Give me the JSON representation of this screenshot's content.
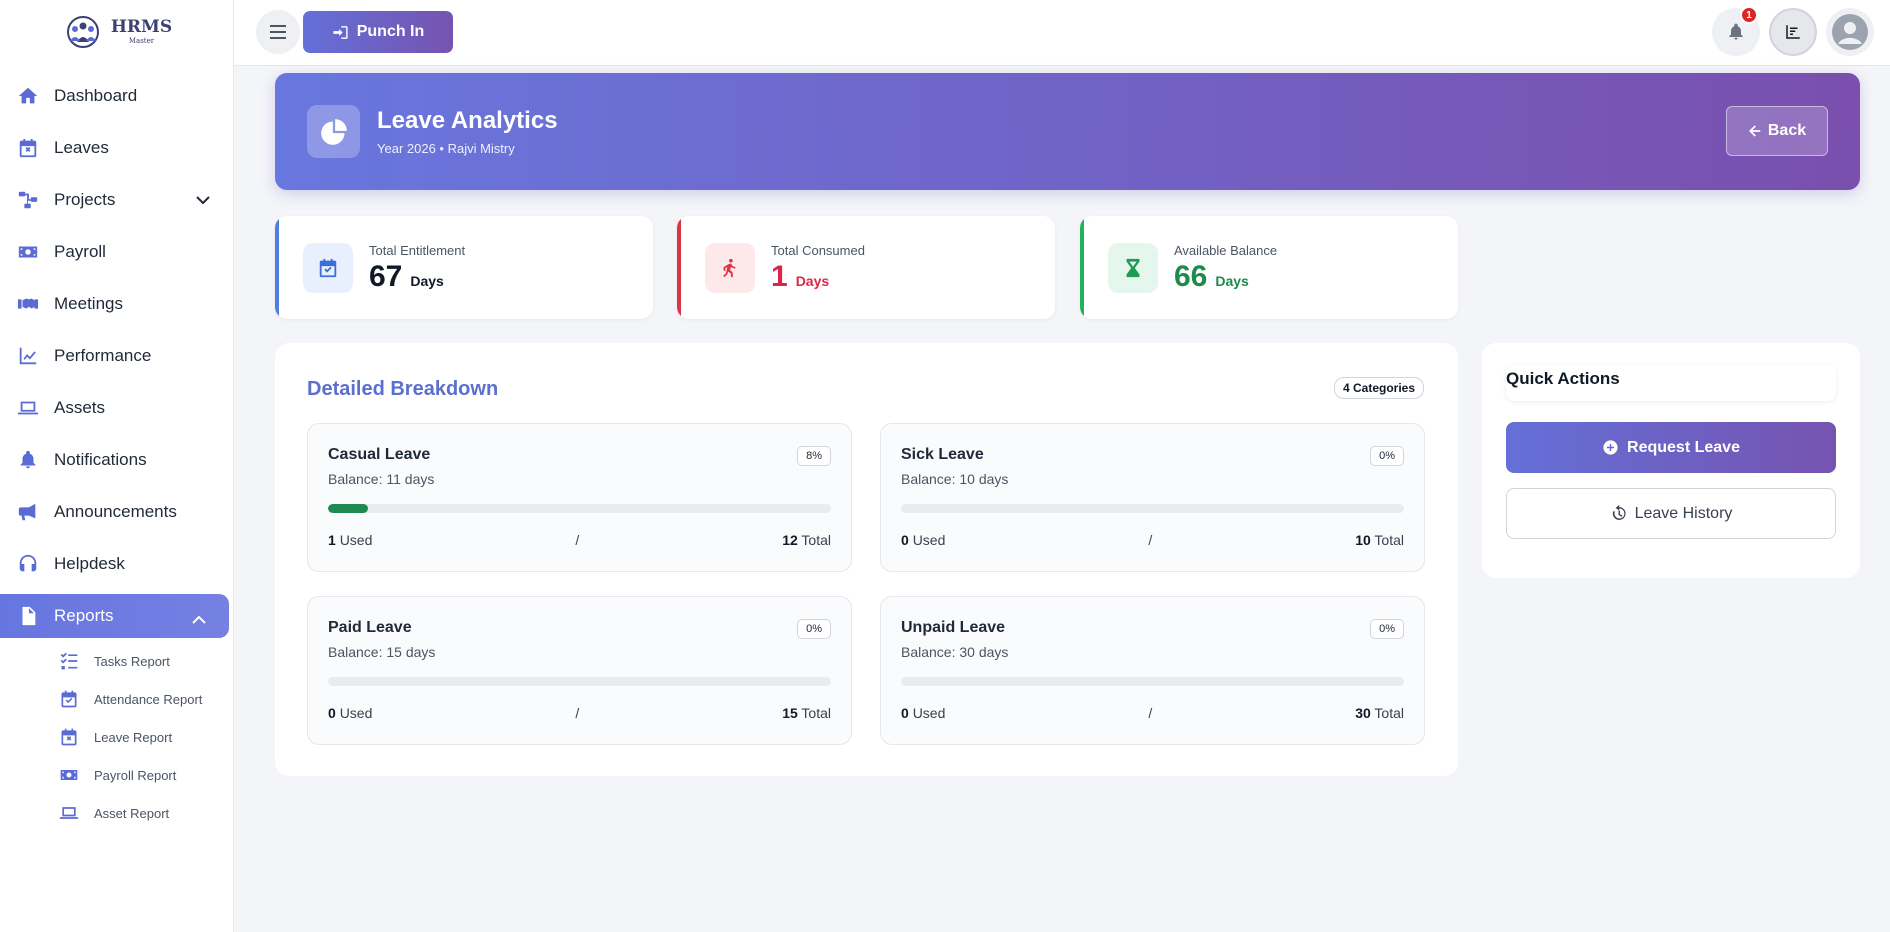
{
  "brand": {
    "name": "HRMS",
    "sub": "Master"
  },
  "sidebar": {
    "items": [
      {
        "label": "Dashboard",
        "icon": "home-icon"
      },
      {
        "label": "Leaves",
        "icon": "calendar-x-icon"
      },
      {
        "label": "Projects",
        "icon": "project-diagram-icon"
      },
      {
        "label": "Payroll",
        "icon": "money-bill-icon"
      },
      {
        "label": "Meetings",
        "icon": "handshake-icon"
      },
      {
        "label": "Performance",
        "icon": "chart-line-icon"
      },
      {
        "label": "Assets",
        "icon": "laptop-icon"
      },
      {
        "label": "Notifications",
        "icon": "bell-icon"
      },
      {
        "label": "Announcements",
        "icon": "bullhorn-icon"
      },
      {
        "label": "Helpdesk",
        "icon": "headset-icon"
      },
      {
        "label": "Reports",
        "icon": "file-icon"
      }
    ],
    "report_items": [
      {
        "label": "Tasks Report",
        "icon": "tasks-icon"
      },
      {
        "label": "Attendance Report",
        "icon": "calendar-check-icon"
      },
      {
        "label": "Leave Report",
        "icon": "calendar-x-icon"
      },
      {
        "label": "Payroll Report",
        "icon": "money-bill-icon"
      },
      {
        "label": "Asset Report",
        "icon": "laptop-icon"
      }
    ]
  },
  "topbar": {
    "punch_label": "Punch In",
    "notif_count": "1"
  },
  "hero": {
    "title": "Leave Analytics",
    "subtitle": "Year 2026 • Rajvi Mistry",
    "back_label": "Back"
  },
  "stats": [
    {
      "label": "Total Entitlement",
      "value": "67",
      "unit": "Days"
    },
    {
      "label": "Total Consumed",
      "value": "1",
      "unit": "Days"
    },
    {
      "label": "Available Balance",
      "value": "66",
      "unit": "Days"
    }
  ],
  "breakdown": {
    "title": "Detailed Breakdown",
    "badge": "4 Categories",
    "items": [
      {
        "name": "Casual Leave",
        "balance": "Balance: 11 days",
        "pct": "8%",
        "progress": 0.08,
        "used": "1",
        "used_label": "Used",
        "sep": "/",
        "total": "12",
        "total_label": "Total"
      },
      {
        "name": "Sick Leave",
        "balance": "Balance: 10 days",
        "pct": "0%",
        "progress": 0,
        "used": "0",
        "used_label": "Used",
        "sep": "/",
        "total": "10",
        "total_label": "Total"
      },
      {
        "name": "Paid Leave",
        "balance": "Balance: 15 days",
        "pct": "0%",
        "progress": 0,
        "used": "0",
        "used_label": "Used",
        "sep": "/",
        "total": "15",
        "total_label": "Total"
      },
      {
        "name": "Unpaid Leave",
        "balance": "Balance: 30 days",
        "pct": "0%",
        "progress": 0,
        "used": "0",
        "used_label": "Used",
        "sep": "/",
        "total": "30",
        "total_label": "Total"
      }
    ]
  },
  "quick_actions": {
    "title": "Quick Actions",
    "request_label": "Request Leave",
    "history_label": "Leave History"
  }
}
